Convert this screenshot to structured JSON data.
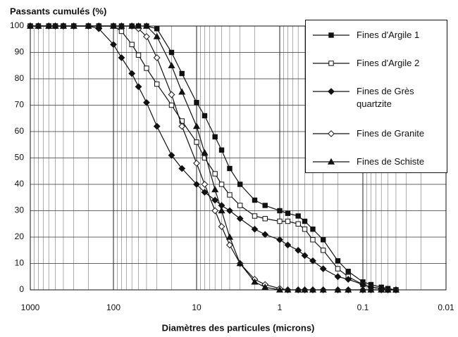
{
  "chart_data": {
    "type": "scatter",
    "title": "Passants cumulés (%)",
    "x_label": "Diamètres des particules (microns)",
    "x": [
      1000,
      800,
      600,
      500,
      400,
      300,
      200,
      150,
      100,
      80,
      60,
      50,
      40,
      30,
      20,
      15,
      10,
      8,
      6,
      5,
      4,
      3,
      2,
      1.5,
      1,
      0.8,
      0.6,
      0.5,
      0.4,
      0.3,
      0.2,
      0.15,
      0.1,
      0.08,
      0.06,
      0.05,
      0.04
    ],
    "xlim": [
      1000,
      0.01
    ],
    "xticks": [
      1000,
      100,
      10,
      1,
      0.1,
      0.01
    ],
    "xscale": "log",
    "ylim": [
      0,
      100
    ],
    "yticks": [
      0,
      10,
      20,
      30,
      40,
      50,
      60,
      70,
      80,
      90,
      100
    ],
    "grid": true,
    "legend": "upper right",
    "series": [
      {
        "name": "Fines d'Argile 1",
        "color": "#111111",
        "marker": "square",
        "values": [
          100,
          100,
          100,
          100,
          100,
          100,
          100,
          100,
          100,
          100,
          100,
          100,
          100,
          99,
          90,
          82,
          71,
          66,
          58,
          53,
          46,
          40,
          34,
          32,
          30,
          29,
          28,
          26,
          23,
          19,
          11,
          7,
          3,
          2,
          1,
          0.5,
          0
        ]
      },
      {
        "name": "Fines d'Argile 2",
        "color": "#111111",
        "marker": "square-open",
        "values": [
          100,
          100,
          100,
          100,
          100,
          100,
          100,
          100,
          100,
          98,
          93,
          89,
          84,
          78,
          70,
          64,
          56,
          50,
          44,
          40,
          36,
          32,
          28,
          27,
          26,
          26,
          25,
          23,
          19,
          15,
          8,
          5,
          2,
          1,
          0.5,
          0,
          0
        ]
      },
      {
        "name": "Fines de Grès quartzite",
        "color": "#111111",
        "marker": "diamond",
        "values": [
          100,
          100,
          100,
          100,
          100,
          100,
          100,
          99,
          93,
          88,
          82,
          77,
          71,
          62,
          51,
          46,
          40,
          37,
          34,
          32,
          30,
          27,
          23,
          21,
          19,
          17,
          15,
          13,
          11,
          8,
          5,
          4,
          2,
          1,
          0.5,
          0,
          0
        ]
      },
      {
        "name": "Fines de Granite",
        "color": "#111111",
        "marker": "diamond-open",
        "values": [
          100,
          100,
          100,
          100,
          100,
          100,
          100,
          100,
          100,
          100,
          100,
          99,
          96,
          88,
          74,
          62,
          48,
          40,
          30,
          24,
          17,
          10,
          4,
          2,
          0.5,
          0,
          0,
          0,
          0,
          0,
          0,
          0,
          0,
          0,
          0,
          0,
          0
        ]
      },
      {
        "name": "Fines de Schiste",
        "color": "#111111",
        "marker": "triangle",
        "values": [
          100,
          100,
          100,
          100,
          100,
          100,
          100,
          100,
          100,
          100,
          100,
          100,
          100,
          96,
          85,
          75,
          62,
          52,
          38,
          30,
          20,
          10,
          3,
          1,
          0,
          0,
          0,
          0,
          0,
          0,
          0,
          0,
          0,
          0,
          0,
          0,
          0
        ]
      }
    ]
  }
}
